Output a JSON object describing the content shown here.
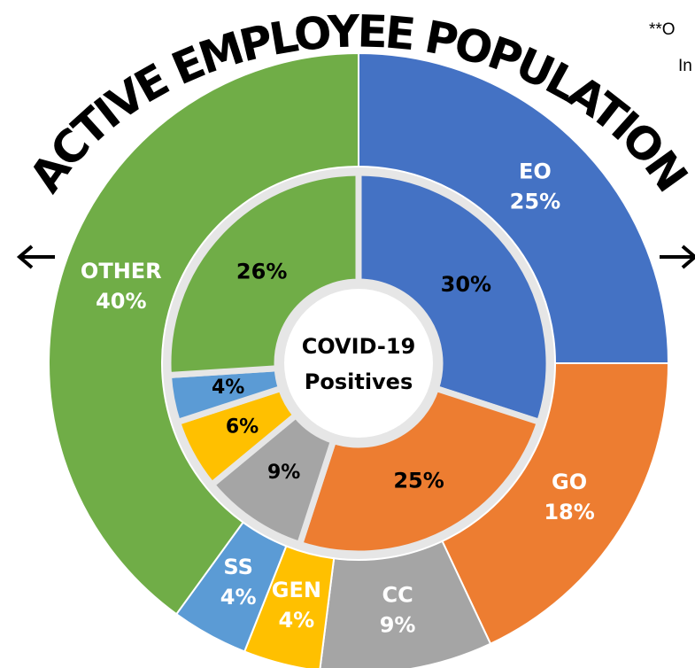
{
  "chart_data": {
    "type": "donut",
    "title": "ACTIVE EMPLOYEE POPULATION",
    "center_label": [
      "COVID-19",
      "Positives"
    ],
    "annotations": [
      "**O",
      "In"
    ],
    "categories": [
      "EO",
      "GO",
      "CC",
      "GEN",
      "SS",
      "OTHER"
    ],
    "colors": [
      "#4472c4",
      "#ed7d31",
      "#a5a5a5",
      "#ffc000",
      "#5b9bd5",
      "#70ad47"
    ],
    "series": [
      {
        "values": [
          25,
          18,
          9,
          4,
          4,
          40
        ],
        "value_labels": [
          "25%",
          "18%",
          "9%",
          "4%",
          "4%",
          "40%"
        ]
      },
      {
        "values": [
          30,
          25,
          9,
          6,
          4,
          26
        ],
        "value_labels": [
          "30%",
          "25%",
          "9%",
          "6%",
          "4%",
          "26%"
        ]
      }
    ]
  }
}
